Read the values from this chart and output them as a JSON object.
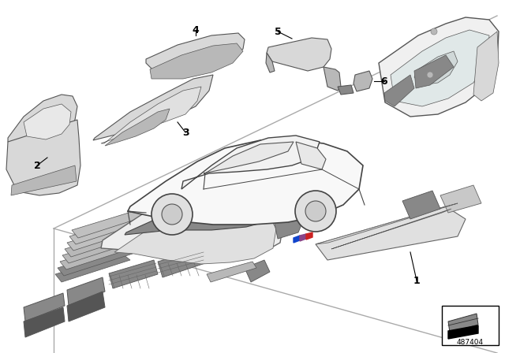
{
  "background_color": "#ffffff",
  "diagram_number": "487404",
  "part_gray_light": "#d8d8d8",
  "part_gray_mid": "#b8b8b8",
  "part_gray_dark": "#888888",
  "part_white": "#f0f0f0",
  "outline_color": "#555555",
  "car_outline": "#333333",
  "label_font_size": 9,
  "divider_line_color": "#999999",
  "platform_edge_color": "#888888"
}
